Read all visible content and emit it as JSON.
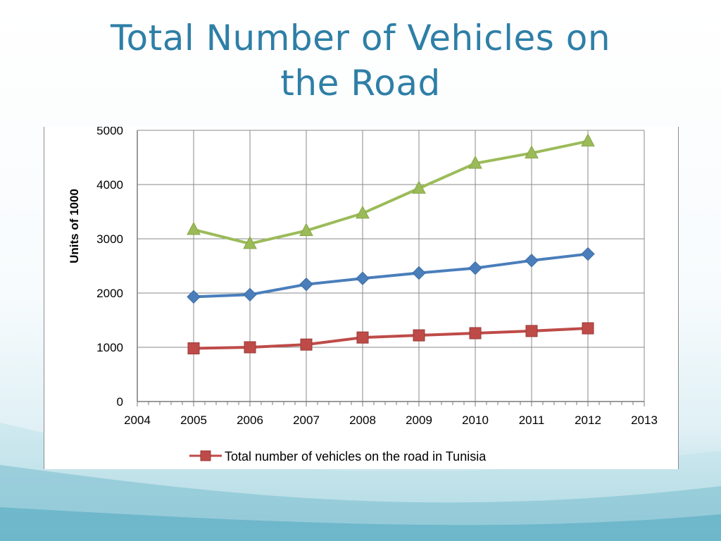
{
  "slide": {
    "title_line1": "Total Number of Vehicles on",
    "title_line2": "the Road",
    "title_color": "#2e7fa6"
  },
  "chart_data": {
    "type": "line",
    "title": "",
    "xlabel": "",
    "ylabel": "Units of 1000",
    "x": [
      2005,
      2006,
      2007,
      2008,
      2009,
      2010,
      2011,
      2012
    ],
    "xlim": [
      2004,
      2013
    ],
    "ylim": [
      0,
      5000
    ],
    "x_ticks": [
      "2004",
      "2005",
      "2006",
      "2007",
      "2008",
      "2009",
      "2010",
      "2011",
      "2012",
      "2013"
    ],
    "y_ticks": [
      "0",
      "1000",
      "2000",
      "3000",
      "4000",
      "5000"
    ],
    "grid": true,
    "legend_position": "bottom",
    "series": [
      {
        "name": "Total number of vehicles on the road in Tunisia",
        "color": "#be4b48",
        "marker": "square",
        "values": [
          980,
          1000,
          1050,
          1180,
          1220,
          1260,
          1300,
          1350
        ]
      },
      {
        "color": "#4a7ebb",
        "marker": "diamond",
        "values": [
          1930,
          1970,
          2160,
          2270,
          2370,
          2460,
          2600,
          2720
        ]
      },
      {
        "color": "#9bbb59",
        "marker": "triangle",
        "values": [
          3170,
          2910,
          3150,
          3470,
          3930,
          4390,
          4580,
          4800
        ]
      }
    ]
  }
}
